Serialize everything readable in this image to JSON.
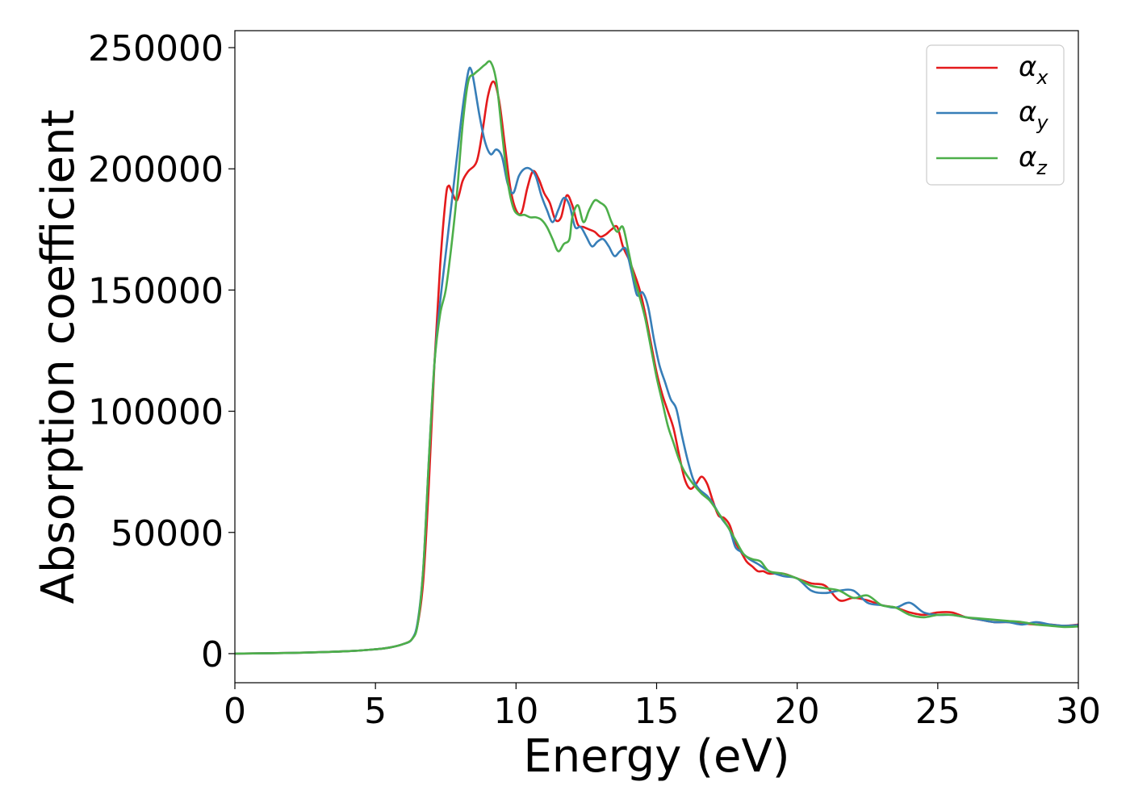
{
  "chart_data": {
    "type": "line",
    "xlabel": "Energy (eV)",
    "ylabel": "Absorption coefficient",
    "xlim": [
      0,
      30
    ],
    "ylim": [
      -12000,
      257000
    ],
    "xticks": [
      0,
      5,
      10,
      15,
      20,
      25,
      30
    ],
    "xtick_labels": [
      "0",
      "5",
      "10",
      "15",
      "20",
      "25",
      "30"
    ],
    "yticks": [
      0,
      50000,
      100000,
      150000,
      200000,
      250000
    ],
    "ytick_labels": [
      "0",
      "50000",
      "100000",
      "150000",
      "200000",
      "250000"
    ],
    "grid": false,
    "legend_position": "top-right",
    "series": [
      {
        "name": "α",
        "subscript": "x",
        "color": "#e41a1c",
        "points": [
          [
            0,
            0
          ],
          [
            2,
            300
          ],
          [
            4,
            1000
          ],
          [
            5,
            1800
          ],
          [
            5.5,
            2500
          ],
          [
            6,
            4000
          ],
          [
            6.3,
            6000
          ],
          [
            6.5,
            12000
          ],
          [
            6.7,
            30000
          ],
          [
            6.9,
            70000
          ],
          [
            7.1,
            120000
          ],
          [
            7.3,
            160000
          ],
          [
            7.5,
            188000
          ],
          [
            7.6,
            193000
          ],
          [
            7.7,
            191000
          ],
          [
            7.9,
            187000
          ],
          [
            8.1,
            195000
          ],
          [
            8.3,
            199000
          ],
          [
            8.6,
            203000
          ],
          [
            8.8,
            215000
          ],
          [
            9.0,
            230000
          ],
          [
            9.2,
            236000
          ],
          [
            9.4,
            228000
          ],
          [
            9.6,
            210000
          ],
          [
            9.8,
            192000
          ],
          [
            10.0,
            183000
          ],
          [
            10.2,
            182000
          ],
          [
            10.4,
            192000
          ],
          [
            10.6,
            199000
          ],
          [
            10.8,
            196000
          ],
          [
            11.0,
            190000
          ],
          [
            11.2,
            186000
          ],
          [
            11.4,
            179000
          ],
          [
            11.6,
            180000
          ],
          [
            11.8,
            189000
          ],
          [
            12.0,
            185000
          ],
          [
            12.2,
            177000
          ],
          [
            12.4,
            176000
          ],
          [
            12.6,
            175000
          ],
          [
            12.8,
            174000
          ],
          [
            13.0,
            172000
          ],
          [
            13.2,
            173000
          ],
          [
            13.4,
            175000
          ],
          [
            13.6,
            176000
          ],
          [
            13.8,
            168000
          ],
          [
            14.0,
            163000
          ],
          [
            14.2,
            157000
          ],
          [
            14.4,
            150000
          ],
          [
            14.6,
            140000
          ],
          [
            14.8,
            128000
          ],
          [
            15.0,
            116000
          ],
          [
            15.2,
            107000
          ],
          [
            15.4,
            100000
          ],
          [
            15.6,
            93000
          ],
          [
            15.8,
            82000
          ],
          [
            16.0,
            72000
          ],
          [
            16.2,
            68000
          ],
          [
            16.4,
            70000
          ],
          [
            16.6,
            73000
          ],
          [
            16.8,
            70000
          ],
          [
            17.0,
            63000
          ],
          [
            17.2,
            57000
          ],
          [
            17.4,
            56000
          ],
          [
            17.6,
            53000
          ],
          [
            17.8,
            46000
          ],
          [
            18.0,
            42000
          ],
          [
            18.2,
            38000
          ],
          [
            18.4,
            36000
          ],
          [
            18.6,
            34000
          ],
          [
            18.8,
            34000
          ],
          [
            19.0,
            33000
          ],
          [
            19.5,
            33000
          ],
          [
            20.0,
            31000
          ],
          [
            20.5,
            29000
          ],
          [
            21.0,
            28000
          ],
          [
            21.5,
            22000
          ],
          [
            22.0,
            23000
          ],
          [
            22.5,
            22000
          ],
          [
            23.0,
            20000
          ],
          [
            23.5,
            19000
          ],
          [
            24.0,
            17000
          ],
          [
            24.5,
            16000
          ],
          [
            25.0,
            17000
          ],
          [
            25.5,
            17000
          ],
          [
            26.0,
            15000
          ],
          [
            26.5,
            14000
          ],
          [
            27.0,
            13000
          ],
          [
            27.5,
            13000
          ],
          [
            28.0,
            12500
          ],
          [
            28.5,
            12000
          ],
          [
            29.0,
            12000
          ],
          [
            29.5,
            11500
          ],
          [
            30.0,
            12000
          ]
        ]
      },
      {
        "name": "α",
        "subscript": "y",
        "color": "#377eb8",
        "points": [
          [
            0,
            0
          ],
          [
            2,
            300
          ],
          [
            4,
            1000
          ],
          [
            5,
            1800
          ],
          [
            5.5,
            2500
          ],
          [
            6,
            4000
          ],
          [
            6.3,
            6000
          ],
          [
            6.5,
            13000
          ],
          [
            6.7,
            35000
          ],
          [
            6.9,
            80000
          ],
          [
            7.1,
            120000
          ],
          [
            7.3,
            145000
          ],
          [
            7.5,
            165000
          ],
          [
            7.7,
            185000
          ],
          [
            7.9,
            205000
          ],
          [
            8.1,
            225000
          ],
          [
            8.3,
            240000
          ],
          [
            8.4,
            241000
          ],
          [
            8.5,
            236000
          ],
          [
            8.7,
            222000
          ],
          [
            8.9,
            211000
          ],
          [
            9.1,
            206000
          ],
          [
            9.3,
            208000
          ],
          [
            9.5,
            205000
          ],
          [
            9.7,
            194000
          ],
          [
            9.9,
            190000
          ],
          [
            10.1,
            197000
          ],
          [
            10.3,
            200000
          ],
          [
            10.5,
            200000
          ],
          [
            10.7,
            197000
          ],
          [
            10.9,
            189000
          ],
          [
            11.1,
            183000
          ],
          [
            11.3,
            178000
          ],
          [
            11.5,
            183000
          ],
          [
            11.7,
            188000
          ],
          [
            11.9,
            185000
          ],
          [
            12.1,
            176000
          ],
          [
            12.3,
            176000
          ],
          [
            12.5,
            172000
          ],
          [
            12.7,
            168000
          ],
          [
            12.9,
            170000
          ],
          [
            13.1,
            171000
          ],
          [
            13.3,
            168000
          ],
          [
            13.5,
            164000
          ],
          [
            13.7,
            166000
          ],
          [
            13.9,
            167000
          ],
          [
            14.1,
            158000
          ],
          [
            14.3,
            148000
          ],
          [
            14.5,
            149000
          ],
          [
            14.7,
            143000
          ],
          [
            14.9,
            130000
          ],
          [
            15.1,
            119000
          ],
          [
            15.3,
            112000
          ],
          [
            15.5,
            105000
          ],
          [
            15.7,
            101000
          ],
          [
            15.9,
            90000
          ],
          [
            16.1,
            80000
          ],
          [
            16.3,
            72000
          ],
          [
            16.5,
            68000
          ],
          [
            16.8,
            65000
          ],
          [
            17.0,
            62000
          ],
          [
            17.3,
            56000
          ],
          [
            17.6,
            51000
          ],
          [
            17.8,
            44000
          ],
          [
            18.0,
            42000
          ],
          [
            18.3,
            39000
          ],
          [
            18.6,
            37000
          ],
          [
            19.0,
            34000
          ],
          [
            19.5,
            32000
          ],
          [
            20.0,
            31000
          ],
          [
            20.5,
            26000
          ],
          [
            21.0,
            25000
          ],
          [
            21.5,
            26000
          ],
          [
            22.0,
            26000
          ],
          [
            22.5,
            21000
          ],
          [
            23.0,
            20000
          ],
          [
            23.5,
            19000
          ],
          [
            24.0,
            21000
          ],
          [
            24.5,
            17000
          ],
          [
            25.0,
            16000
          ],
          [
            25.5,
            16000
          ],
          [
            26.0,
            15000
          ],
          [
            26.5,
            14000
          ],
          [
            27.0,
            13000
          ],
          [
            27.5,
            13000
          ],
          [
            28.0,
            12000
          ],
          [
            28.5,
            13000
          ],
          [
            29.0,
            12000
          ],
          [
            29.5,
            11500
          ],
          [
            30.0,
            11800
          ]
        ]
      },
      {
        "name": "α",
        "subscript": "z",
        "color": "#4daf4a",
        "points": [
          [
            0,
            0
          ],
          [
            2,
            300
          ],
          [
            4,
            1000
          ],
          [
            5,
            1800
          ],
          [
            5.5,
            2500
          ],
          [
            6,
            4000
          ],
          [
            6.3,
            6000
          ],
          [
            6.5,
            12000
          ],
          [
            6.7,
            35000
          ],
          [
            6.9,
            80000
          ],
          [
            7.1,
            120000
          ],
          [
            7.3,
            140000
          ],
          [
            7.5,
            150000
          ],
          [
            7.7,
            168000
          ],
          [
            7.9,
            190000
          ],
          [
            8.1,
            218000
          ],
          [
            8.3,
            236000
          ],
          [
            8.5,
            239000
          ],
          [
            8.7,
            241000
          ],
          [
            8.9,
            243000
          ],
          [
            9.1,
            244000
          ],
          [
            9.3,
            236000
          ],
          [
            9.5,
            215000
          ],
          [
            9.7,
            195000
          ],
          [
            9.9,
            184000
          ],
          [
            10.1,
            181000
          ],
          [
            10.3,
            181000
          ],
          [
            10.5,
            180000
          ],
          [
            10.7,
            180000
          ],
          [
            10.9,
            179000
          ],
          [
            11.1,
            176000
          ],
          [
            11.3,
            171000
          ],
          [
            11.5,
            166000
          ],
          [
            11.7,
            169000
          ],
          [
            11.9,
            171000
          ],
          [
            12.0,
            180000
          ],
          [
            12.2,
            185000
          ],
          [
            12.4,
            178000
          ],
          [
            12.6,
            183000
          ],
          [
            12.8,
            187000
          ],
          [
            13.0,
            186000
          ],
          [
            13.2,
            184000
          ],
          [
            13.4,
            178000
          ],
          [
            13.6,
            174000
          ],
          [
            13.8,
            176000
          ],
          [
            14.0,
            166000
          ],
          [
            14.2,
            155000
          ],
          [
            14.4,
            147000
          ],
          [
            14.6,
            138000
          ],
          [
            14.8,
            126000
          ],
          [
            15.0,
            114000
          ],
          [
            15.2,
            104000
          ],
          [
            15.4,
            94000
          ],
          [
            15.6,
            87000
          ],
          [
            15.8,
            80000
          ],
          [
            16.0,
            75000
          ],
          [
            16.3,
            70000
          ],
          [
            16.6,
            66000
          ],
          [
            16.9,
            63000
          ],
          [
            17.2,
            58000
          ],
          [
            17.5,
            53000
          ],
          [
            17.8,
            47000
          ],
          [
            18.1,
            41000
          ],
          [
            18.4,
            39000
          ],
          [
            18.7,
            38000
          ],
          [
            19.0,
            34000
          ],
          [
            19.5,
            33000
          ],
          [
            20.0,
            31000
          ],
          [
            20.5,
            28000
          ],
          [
            21.0,
            27000
          ],
          [
            21.5,
            26000
          ],
          [
            22.0,
            23000
          ],
          [
            22.5,
            24000
          ],
          [
            23.0,
            20000
          ],
          [
            23.5,
            19000
          ],
          [
            24.0,
            16000
          ],
          [
            24.5,
            15000
          ],
          [
            25.0,
            16000
          ],
          [
            25.5,
            16000
          ],
          [
            26.0,
            15000
          ],
          [
            26.5,
            14500
          ],
          [
            27.0,
            14000
          ],
          [
            27.5,
            13500
          ],
          [
            28.0,
            13000
          ],
          [
            28.5,
            12000
          ],
          [
            29.0,
            11500
          ],
          [
            29.5,
            11000
          ],
          [
            30.0,
            11200
          ]
        ]
      }
    ]
  }
}
